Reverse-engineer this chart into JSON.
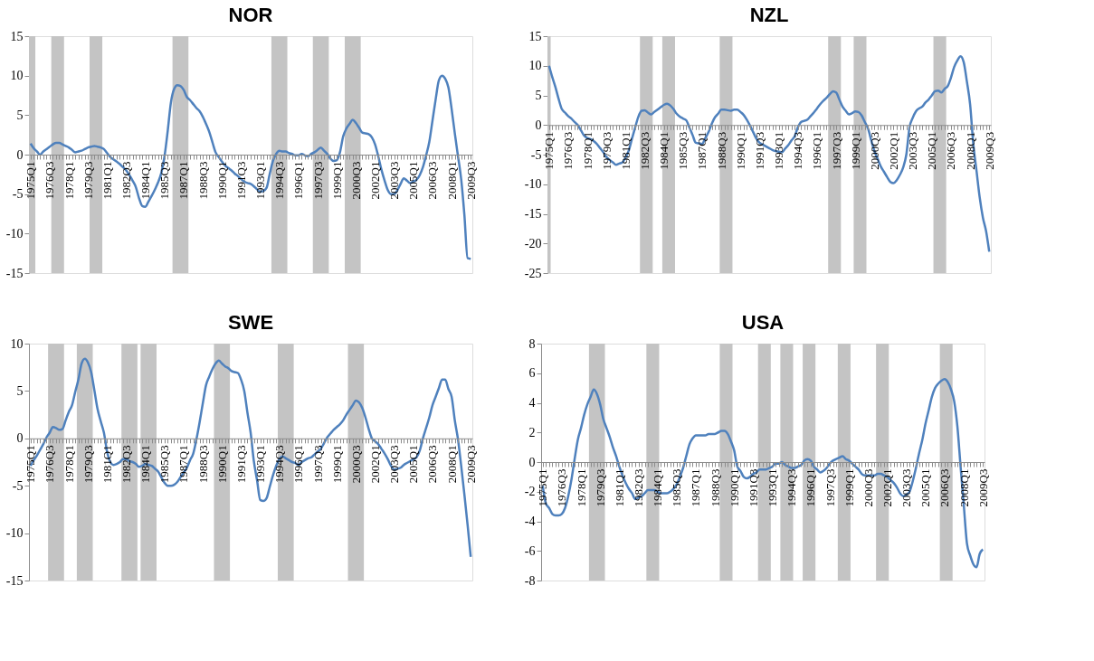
{
  "chart_data": [
    {
      "type": "line",
      "title": "NOR",
      "ylim": [
        -15,
        15
      ],
      "yticks": [
        -15,
        -10,
        -5,
        0,
        5,
        10,
        15
      ],
      "categories": [
        "1975Q1",
        null,
        null,
        null,
        null,
        null,
        "1976Q3",
        null,
        null,
        null,
        null,
        null,
        "1978Q1",
        null,
        null,
        null,
        null,
        null,
        "1979Q3",
        null,
        null,
        null,
        null,
        null,
        "1981Q1",
        null,
        null,
        null,
        null,
        null,
        "1982Q3",
        null,
        null,
        null,
        null,
        null,
        "1984Q1",
        null,
        null,
        null,
        null,
        null,
        "1985Q3",
        null,
        null,
        null,
        null,
        null,
        "1987Q1",
        null,
        null,
        null,
        null,
        null,
        "1988Q3",
        null,
        null,
        null,
        null,
        null,
        "1990Q1",
        null,
        null,
        null,
        null,
        null,
        "1991Q3",
        null,
        null,
        null,
        null,
        null,
        "1993Q1",
        null,
        null,
        null,
        null,
        null,
        "1994Q3",
        null,
        null,
        null,
        null,
        null,
        "1996Q1",
        null,
        null,
        null,
        null,
        null,
        "1997Q3",
        null,
        null,
        null,
        null,
        null,
        "1999Q1",
        null,
        null,
        null,
        null,
        null,
        "2000Q3",
        null,
        null,
        null,
        null,
        null,
        "2002Q1",
        null,
        null,
        null,
        null,
        null,
        "2003Q3",
        null,
        null,
        null,
        null,
        null,
        "2005Q1",
        null,
        null,
        null,
        null,
        null,
        "2006Q3",
        null,
        null,
        null,
        null,
        null,
        "2008Q1",
        null,
        null,
        null,
        null,
        null,
        "2009Q3"
      ],
      "series": [
        {
          "color": "#4f81bd",
          "values": [
            1.4,
            0.8,
            0.4,
            0.0,
            0.4,
            0.7,
            1.0,
            1.3,
            1.5,
            1.5,
            1.3,
            1.1,
            0.9,
            0.6,
            0.3,
            0.4,
            0.5,
            0.7,
            0.9,
            1.0,
            1.1,
            1.0,
            0.9,
            0.7,
            0.2,
            -0.3,
            -0.6,
            -0.9,
            -1.2,
            -1.6,
            -2.0,
            -2.6,
            -3.3,
            -4.1,
            -5.5,
            -6.5,
            -6.6,
            -5.9,
            -5.2,
            -4.4,
            -3.5,
            -2.3,
            -0.2,
            3.0,
            6.6,
            8.3,
            8.8,
            8.7,
            8.2,
            7.3,
            6.9,
            6.4,
            5.9,
            5.5,
            4.8,
            3.9,
            2.9,
            1.6,
            0.3,
            -0.3,
            -0.9,
            -1.4,
            -1.7,
            -2.0,
            -2.4,
            -2.7,
            -3.1,
            -3.4,
            -3.6,
            -3.7,
            -4.0,
            -4.4,
            -4.7,
            -4.6,
            -4.2,
            -2.4,
            -0.8,
            0.1,
            0.5,
            0.4,
            0.4,
            0.2,
            0.1,
            -0.1,
            -0.1,
            0.1,
            -0.1,
            -0.2,
            0.1,
            0.3,
            0.6,
            0.9,
            0.5,
            0.1,
            -0.5,
            -0.8,
            -0.7,
            0.3,
            2.3,
            3.3,
            3.9,
            4.4,
            4.0,
            3.4,
            2.8,
            2.7,
            2.6,
            2.2,
            1.3,
            -0.2,
            -1.9,
            -3.3,
            -4.5,
            -5.0,
            -5.0,
            -4.5,
            -3.7,
            -3.0,
            -3.3,
            -3.6,
            -3.4,
            -3.2,
            -2.6,
            -1.6,
            -0.1,
            1.6,
            4.3,
            7.0,
            9.4,
            10.0,
            9.6,
            8.5,
            5.8,
            2.7,
            -0.2,
            -3.1,
            -7.6,
            -13.1,
            -13.2
          ]
        }
      ]
    },
    {
      "type": "line",
      "title": "NZL",
      "ylim": [
        -25,
        15
      ],
      "yticks": [
        -25,
        -20,
        -15,
        -10,
        -5,
        0,
        5,
        10,
        15
      ],
      "categories": [
        "1975Q1",
        null,
        null,
        null,
        null,
        null,
        "1976Q3",
        null,
        null,
        null,
        null,
        null,
        "1978Q1",
        null,
        null,
        null,
        null,
        null,
        "1979Q3",
        null,
        null,
        null,
        null,
        null,
        "1981Q1",
        null,
        null,
        null,
        null,
        null,
        "1982Q3",
        null,
        null,
        null,
        null,
        null,
        "1984Q1",
        null,
        null,
        null,
        null,
        null,
        "1985Q3",
        null,
        null,
        null,
        null,
        null,
        "1987Q1",
        null,
        null,
        null,
        null,
        null,
        "1988Q3",
        null,
        null,
        null,
        null,
        null,
        "1990Q1",
        null,
        null,
        null,
        null,
        null,
        "1991Q3",
        null,
        null,
        null,
        null,
        null,
        "1993Q1",
        null,
        null,
        null,
        null,
        null,
        "1994Q3",
        null,
        null,
        null,
        null,
        null,
        "1996Q1",
        null,
        null,
        null,
        null,
        null,
        "1997Q3",
        null,
        null,
        null,
        null,
        null,
        "1999Q1",
        null,
        null,
        null,
        null,
        null,
        "2000Q3",
        null,
        null,
        null,
        null,
        null,
        "2002Q1",
        null,
        null,
        null,
        null,
        null,
        "2003Q3",
        null,
        null,
        null,
        null,
        null,
        "2005Q1",
        null,
        null,
        null,
        null,
        null,
        "2006Q3",
        null,
        null,
        null,
        null,
        null,
        "2008Q1",
        null,
        null,
        null,
        null,
        null,
        "2009Q3"
      ],
      "series": [
        {
          "color": "#4f81bd",
          "values": [
            10.0,
            8.1,
            6.4,
            4.4,
            2.7,
            2.1,
            1.5,
            1.1,
            0.5,
            0.0,
            -0.9,
            -1.8,
            -2.2,
            -2.4,
            -2.7,
            -3.2,
            -3.9,
            -4.6,
            -5.4,
            -5.9,
            -6.3,
            -6.7,
            -6.5,
            -6.3,
            -5.5,
            -4.3,
            -2.3,
            -0.4,
            1.4,
            2.4,
            2.5,
            2.1,
            1.8,
            2.2,
            2.6,
            3.0,
            3.4,
            3.6,
            3.3,
            2.7,
            1.9,
            1.4,
            1.1,
            0.8,
            -0.4,
            -1.7,
            -3.0,
            -3.1,
            -3.2,
            -2.2,
            -1.2,
            0.2,
            1.3,
            1.9,
            2.6,
            2.6,
            2.5,
            2.4,
            2.6,
            2.6,
            2.2,
            1.7,
            0.9,
            -0.1,
            -1.2,
            -2.3,
            -3.0,
            -3.3,
            -3.6,
            -3.9,
            -4.2,
            -4.4,
            -4.5,
            -4.6,
            -4.0,
            -3.4,
            -2.6,
            -1.9,
            -0.4,
            0.5,
            0.7,
            0.9,
            1.5,
            2.1,
            2.8,
            3.5,
            4.1,
            4.6,
            5.2,
            5.7,
            5.5,
            4.3,
            3.1,
            2.4,
            1.8,
            2.0,
            2.3,
            2.2,
            1.6,
            0.5,
            -0.6,
            -2.6,
            -4.4,
            -5.7,
            -7.0,
            -7.9,
            -8.8,
            -9.6,
            -9.8,
            -9.3,
            -8.4,
            -7.2,
            -5.0,
            -0.4,
            1.2,
            2.3,
            2.8,
            3.1,
            3.8,
            4.3,
            5.0,
            5.7,
            5.8,
            5.5,
            6.1,
            6.6,
            8.0,
            9.8,
            10.9,
            11.6,
            10.6,
            7.3,
            3.5,
            -3.2,
            -7.7,
            -12.2,
            -15.6,
            -17.9,
            -21.4
          ]
        }
      ]
    },
    {
      "type": "line",
      "title": "SWE",
      "ylim": [
        -15,
        10
      ],
      "yticks": [
        -15,
        -10,
        -5,
        0,
        5,
        10
      ],
      "categories": [
        "1975Q1",
        null,
        null,
        null,
        null,
        null,
        "1976Q3",
        null,
        null,
        null,
        null,
        null,
        "1978Q1",
        null,
        null,
        null,
        null,
        null,
        "1979Q3",
        null,
        null,
        null,
        null,
        null,
        "1981Q1",
        null,
        null,
        null,
        null,
        null,
        "1982Q3",
        null,
        null,
        null,
        null,
        null,
        "1984Q1",
        null,
        null,
        null,
        null,
        null,
        "1985Q3",
        null,
        null,
        null,
        null,
        null,
        "1987Q1",
        null,
        null,
        null,
        null,
        null,
        "1988Q3",
        null,
        null,
        null,
        null,
        null,
        "1990Q1",
        null,
        null,
        null,
        null,
        null,
        "1991Q3",
        null,
        null,
        null,
        null,
        null,
        "1993Q1",
        null,
        null,
        null,
        null,
        null,
        "1994Q3",
        null,
        null,
        null,
        null,
        null,
        "1996Q1",
        null,
        null,
        null,
        null,
        null,
        "1997Q3",
        null,
        null,
        null,
        null,
        null,
        "1999Q1",
        null,
        null,
        null,
        null,
        null,
        "2000Q3",
        null,
        null,
        null,
        null,
        null,
        "2002Q1",
        null,
        null,
        null,
        null,
        null,
        "2003Q3",
        null,
        null,
        null,
        null,
        null,
        "2005Q1",
        null,
        null,
        null,
        null,
        null,
        "2006Q3",
        null,
        null,
        null,
        null,
        null,
        "2008Q1",
        null,
        null,
        null,
        null,
        null,
        "2009Q3"
      ],
      "series": [
        {
          "color": "#4f81bd",
          "values": [
            -2.9,
            -2.3,
            -1.8,
            -1.2,
            -0.6,
            0.1,
            0.6,
            1.2,
            1.1,
            0.9,
            1.0,
            1.9,
            2.8,
            3.5,
            4.9,
            6.2,
            7.9,
            8.4,
            8.0,
            7.0,
            5.1,
            3.1,
            1.8,
            0.6,
            -1.4,
            -2.5,
            -2.8,
            -2.7,
            -2.5,
            -2.2,
            -2.2,
            -2.4,
            -2.5,
            -2.7,
            -3.0,
            -2.9,
            -2.7,
            -2.8,
            -2.9,
            -3.2,
            -3.5,
            -4.1,
            -4.7,
            -5.0,
            -5.0,
            -4.9,
            -4.6,
            -4.1,
            -3.6,
            -3.1,
            -2.3,
            -1.6,
            -0.1,
            1.7,
            3.7,
            5.6,
            6.5,
            7.3,
            7.9,
            8.2,
            7.9,
            7.6,
            7.4,
            7.1,
            7.0,
            6.9,
            6.2,
            5.0,
            2.7,
            0.6,
            -2.4,
            -4.4,
            -6.5,
            -6.6,
            -6.3,
            -5.1,
            -3.9,
            -2.9,
            -2.2,
            -1.9,
            -2.1,
            -2.3,
            -2.5,
            -2.6,
            -2.8,
            -2.5,
            -2.3,
            -2.1,
            -2.0,
            -1.7,
            -1.4,
            -1.1,
            -0.5,
            0.1,
            0.5,
            0.9,
            1.2,
            1.5,
            1.9,
            2.5,
            3.0,
            3.5,
            4.0,
            3.8,
            3.2,
            2.2,
            1.0,
            0.0,
            -0.3,
            -0.6,
            -1.1,
            -1.6,
            -2.2,
            -2.9,
            -3.3,
            -3.2,
            -3.1,
            -2.8,
            -2.6,
            -2.4,
            -2.2,
            -2.0,
            -1.3,
            0.0,
            1.1,
            2.2,
            3.5,
            4.4,
            5.3,
            6.2,
            6.2,
            5.2,
            4.4,
            1.9,
            -0.1,
            -2.9,
            -5.9,
            -9.1,
            -12.5
          ]
        }
      ]
    },
    {
      "type": "line",
      "title": "USA",
      "ylim": [
        -8,
        8
      ],
      "yticks": [
        -8,
        -6,
        -4,
        -2,
        0,
        2,
        4,
        6,
        8
      ],
      "categories": [
        "1975Q1",
        null,
        null,
        null,
        null,
        null,
        "1976Q3",
        null,
        null,
        null,
        null,
        null,
        "1978Q1",
        null,
        null,
        null,
        null,
        null,
        "1979Q3",
        null,
        null,
        null,
        null,
        null,
        "1981Q1",
        null,
        null,
        null,
        null,
        null,
        "1982Q3",
        null,
        null,
        null,
        null,
        null,
        "1984Q1",
        null,
        null,
        null,
        null,
        null,
        "1985Q3",
        null,
        null,
        null,
        null,
        null,
        "1987Q1",
        null,
        null,
        null,
        null,
        null,
        "1988Q3",
        null,
        null,
        null,
        null,
        null,
        "1990Q1",
        null,
        null,
        null,
        null,
        null,
        "1991Q3",
        null,
        null,
        null,
        null,
        null,
        "1993Q1",
        null,
        null,
        null,
        null,
        null,
        "1994Q3",
        null,
        null,
        null,
        null,
        null,
        "1996Q1",
        null,
        null,
        null,
        null,
        null,
        "1997Q3",
        null,
        null,
        null,
        null,
        null,
        "1999Q1",
        null,
        null,
        null,
        null,
        null,
        "2000Q3",
        null,
        null,
        null,
        null,
        null,
        "2002Q1",
        null,
        null,
        null,
        null,
        null,
        "2003Q3",
        null,
        null,
        null,
        null,
        null,
        "2005Q1",
        null,
        null,
        null,
        null,
        null,
        "2006Q3",
        null,
        null,
        null,
        null,
        null,
        "2008Q1",
        null,
        null,
        null,
        null,
        null,
        "2009Q3"
      ],
      "series": [
        {
          "color": "#4f81bd",
          "values": [
            -1.6,
            -2.8,
            -3.1,
            -3.5,
            -3.6,
            -3.6,
            -3.5,
            -3.1,
            -2.3,
            -1.2,
            0.2,
            1.5,
            2.3,
            3.2,
            3.9,
            4.4,
            4.9,
            4.6,
            3.9,
            2.9,
            2.3,
            1.7,
            1.0,
            0.4,
            -0.3,
            -0.9,
            -1.4,
            -1.8,
            -2.1,
            -2.5,
            -2.4,
            -2.3,
            -2.1,
            -1.9,
            -1.9,
            -1.9,
            -2.0,
            -2.1,
            -2.1,
            -2.1,
            -2.0,
            -1.8,
            -1.5,
            -1.0,
            -0.4,
            0.4,
            1.2,
            1.6,
            1.8,
            1.8,
            1.8,
            1.8,
            1.9,
            1.9,
            1.9,
            2.0,
            2.1,
            2.1,
            1.9,
            1.4,
            0.8,
            -0.3,
            -0.6,
            -1.0,
            -1.1,
            -1.0,
            -0.8,
            -0.7,
            -0.5,
            -0.5,
            -0.5,
            -0.4,
            -0.3,
            -0.1,
            -0.1,
            0.0,
            -0.2,
            -0.3,
            -0.4,
            -0.4,
            -0.3,
            -0.2,
            0.1,
            0.2,
            0.1,
            -0.3,
            -0.5,
            -0.7,
            -0.6,
            -0.4,
            -0.1,
            0.1,
            0.2,
            0.3,
            0.4,
            0.2,
            0.1,
            -0.1,
            -0.3,
            -0.5,
            -0.8,
            -0.9,
            -0.9,
            -0.9,
            -0.9,
            -0.8,
            -0.8,
            -0.9,
            -1.0,
            -1.2,
            -1.4,
            -1.7,
            -2.1,
            -2.3,
            -2.2,
            -2.0,
            -1.3,
            -0.4,
            0.6,
            1.5,
            2.6,
            3.5,
            4.4,
            5.0,
            5.3,
            5.5,
            5.6,
            5.4,
            4.9,
            4.1,
            2.4,
            -0.3,
            -2.9,
            -5.5,
            -6.3,
            -6.9,
            -7.1,
            -6.2,
            -5.9
          ]
        }
      ]
    }
  ]
}
